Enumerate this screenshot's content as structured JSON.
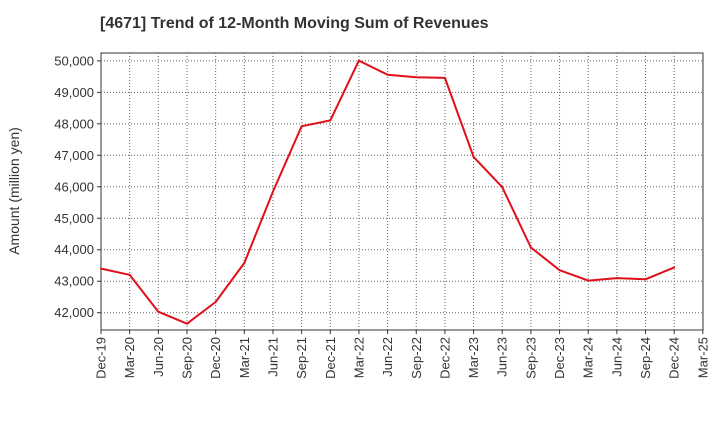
{
  "chart_data": {
    "type": "line",
    "title": "[4671]  Trend of 12-Month Moving Sum of Revenues",
    "ylabel": "Amount (million yen)",
    "xlabel": "",
    "x_tick_labels": [
      "Dec-19",
      "Mar-20",
      "Jun-20",
      "Sep-20",
      "Dec-20",
      "Mar-21",
      "Jun-21",
      "Sep-21",
      "Dec-21",
      "Mar-22",
      "Jun-22",
      "Sep-22",
      "Dec-22",
      "Mar-23",
      "Jun-23",
      "Sep-23",
      "Dec-23",
      "Mar-24",
      "Jun-24",
      "Sep-24",
      "Dec-24",
      "Mar-25"
    ],
    "y_ticks": [
      42000,
      43000,
      44000,
      45000,
      46000,
      47000,
      48000,
      49000,
      50000
    ],
    "y_tick_labels": [
      "42,000",
      "43,000",
      "44,000",
      "45,000",
      "46,000",
      "47,000",
      "48,000",
      "49,000",
      "50,000"
    ],
    "ylim": [
      41450,
      50250
    ],
    "grid": true,
    "series": [
      {
        "color": "#e0101a",
        "x": [
          "Dec-19",
          "Mar-20",
          "Jun-20",
          "Sep-20",
          "Dec-20",
          "Mar-21",
          "Jun-21",
          "Sep-21",
          "Dec-21",
          "Mar-22",
          "Jun-22",
          "Sep-22",
          "Dec-22",
          "Mar-23",
          "Jun-23",
          "Sep-23",
          "Dec-23",
          "Mar-24",
          "Jun-24",
          "Sep-24",
          "Dec-24"
        ],
        "values": [
          43400,
          43200,
          42030,
          41650,
          42340,
          43580,
          45850,
          47920,
          48110,
          50010,
          49560,
          49480,
          49460,
          46950,
          45990,
          44070,
          43350,
          43020,
          43100,
          43060,
          43440
        ]
      }
    ]
  }
}
